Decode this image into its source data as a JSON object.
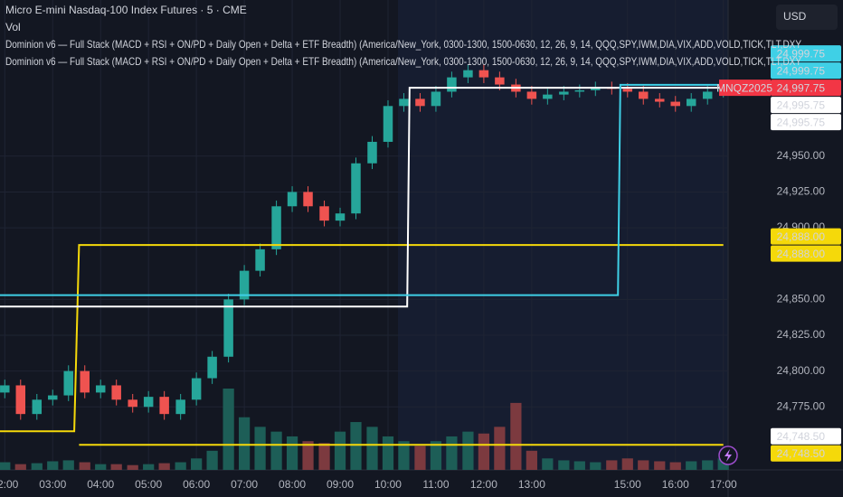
{
  "chart_data": {
    "type": "candlestick",
    "title": "Micro E-mini Nasdaq-100 Index Futures · 5 · CME",
    "indicators": [
      "Vol",
      "Dominion v6 — Full Stack (MACD + RSI + ON/PD + Daily Open + Delta + ETF Breadth) (America/New_York, 0300-1300, 1500-0630, 12, 26, 9, 14, QQQ,SPY,IWM,DIA,VIX,ADD,VOLD,TICK,TLT,DXY",
      "Dominion v6 — Full Stack (MACD + RSI + ON/PD + Daily Open + Delta + ETF Breadth) (America/New_York, 0300-1300, 1500-0630, 12, 26, 9, 14, QQQ,SPY,IWM,DIA,VIX,ADD,VOLD,TICK,TLT,DXY"
    ],
    "currency": "USD",
    "x": [
      2.0,
      2.33,
      2.67,
      3.0,
      3.33,
      3.67,
      4.0,
      4.33,
      4.67,
      5.0,
      5.33,
      5.67,
      6.0,
      6.33,
      6.67,
      7.0,
      7.33,
      7.67,
      8.0,
      8.33,
      8.67,
      9.0,
      9.33,
      9.67,
      10.0,
      10.33,
      10.67,
      11.0,
      11.33,
      11.67,
      12.0,
      12.33,
      12.67,
      13.0,
      13.33,
      13.67,
      14.0,
      14.33,
      14.67,
      15.0,
      15.33,
      15.67,
      16.0,
      16.33,
      16.67,
      17.0
    ],
    "open": [
      24785,
      24790,
      24770,
      24780,
      24783,
      24800,
      24785,
      24790,
      24780,
      24775,
      24782,
      24770,
      24780,
      24795,
      24810,
      24850,
      24870,
      24885,
      24915,
      24925,
      24915,
      24905,
      24910,
      24945,
      24960,
      24985,
      24990,
      24985,
      24995,
      25005,
      25010,
      25005,
      25000,
      24995,
      24990,
      24993,
      24995,
      24996,
      24998,
      24997,
      24995,
      24990,
      24988,
      24985,
      24990,
      24995
    ],
    "high": [
      24794,
      24794,
      24784,
      24787,
      24804,
      24804,
      24794,
      24794,
      24784,
      24786,
      24786,
      24784,
      24799,
      24814,
      24854,
      24874,
      24889,
      24919,
      24929,
      24929,
      24919,
      24914,
      24949,
      24964,
      24989,
      24994,
      24994,
      24999,
      25009,
      25014,
      25014,
      25009,
      25004,
      24999,
      24997,
      24999,
      25000,
      25002,
      25002,
      25001,
      24999,
      24994,
      24992,
      24994,
      24999,
      25002
    ],
    "low": [
      24781,
      24766,
      24766,
      24776,
      24779,
      24781,
      24781,
      24776,
      24771,
      24771,
      24766,
      24766,
      24776,
      24791,
      24806,
      24846,
      24866,
      24881,
      24911,
      24911,
      24901,
      24901,
      24906,
      24941,
      24956,
      24981,
      24981,
      24981,
      24991,
      25001,
      25001,
      24996,
      24991,
      24986,
      24986,
      24989,
      24991,
      24992,
      24993,
      24991,
      24986,
      24984,
      24981,
      24981,
      24986,
      24991
    ],
    "close": [
      24790,
      24770,
      24780,
      24783,
      24800,
      24785,
      24790,
      24780,
      24775,
      24782,
      24770,
      24780,
      24795,
      24810,
      24850,
      24870,
      24885,
      24915,
      24925,
      24915,
      24905,
      24910,
      24945,
      24960,
      24985,
      24990,
      24985,
      24995,
      25005,
      25010,
      25005,
      25000,
      24995,
      24990,
      24993,
      24995,
      24996,
      24998,
      24997,
      24995,
      24990,
      24988,
      24985,
      24990,
      24995,
      24998
    ],
    "volume": [
      8,
      6,
      7,
      9,
      10,
      8,
      6,
      6,
      5,
      6,
      7,
      8,
      12,
      20,
      85,
      55,
      45,
      40,
      35,
      30,
      28,
      40,
      50,
      45,
      35,
      30,
      25,
      30,
      35,
      40,
      38,
      45,
      70,
      20,
      12,
      10,
      9,
      8,
      10,
      12,
      10,
      9,
      8,
      9,
      10,
      12
    ],
    "up_color": "#26a69a",
    "down_color": "#ef5350",
    "up_volume_color": "#1d5e57",
    "down_volume_color": "#7c3a3f",
    "xlim": [
      1.9,
      17.1
    ],
    "ylim": [
      24731,
      25059
    ],
    "grid": true,
    "xticks": [
      {
        "value": 2,
        "label": "02:00"
      },
      {
        "value": 3,
        "label": "03:00"
      },
      {
        "value": 4,
        "label": "04:00"
      },
      {
        "value": 5,
        "label": "05:00"
      },
      {
        "value": 6,
        "label": "06:00"
      },
      {
        "value": 7,
        "label": "07:00"
      },
      {
        "value": 8,
        "label": "08:00"
      },
      {
        "value": 9,
        "label": "09:00"
      },
      {
        "value": 10,
        "label": "10:00"
      },
      {
        "value": 11,
        "label": "11:00"
      },
      {
        "value": 12,
        "label": "12:00"
      },
      {
        "value": 13,
        "label": "13:00"
      },
      {
        "value": 15,
        "label": "15:00"
      },
      {
        "value": 16,
        "label": "16:00"
      },
      {
        "value": 17,
        "label": "17:00"
      }
    ],
    "yticks": [
      {
        "value": 24775,
        "label": "24,775.00"
      },
      {
        "value": 24800,
        "label": "24,800.00"
      },
      {
        "value": 24825,
        "label": "24,825.00"
      },
      {
        "value": 24850,
        "label": "24,850.00"
      },
      {
        "value": 24900,
        "label": "24,900.00"
      },
      {
        "value": 24925,
        "label": "24,925.00"
      },
      {
        "value": 24950,
        "label": "24,950.00"
      }
    ],
    "lines": [
      {
        "color": "#f5d90a",
        "x": [
          1.9,
          3.45,
          3.55,
          17.0
        ],
        "values": [
          24758,
          24758,
          24888,
          24888
        ]
      },
      {
        "color": "#f5d90a",
        "x": [
          3.55,
          17.0
        ],
        "values": [
          24748.5,
          24748.5
        ]
      },
      {
        "color": "#ffffff",
        "x": [
          1.9,
          10.4,
          10.45,
          17.0
        ],
        "values": [
          24845,
          24845,
          24997.75,
          24997.75
        ]
      },
      {
        "color": "#3fd0e6",
        "x": [
          1.9,
          14.8,
          14.85,
          17.0
        ],
        "values": [
          24853,
          24853,
          24999.75,
          24999.75
        ]
      }
    ],
    "price_labels": [
      {
        "value": 24999.75,
        "label": "24,999.75",
        "color": "#3fd0e6",
        "text_color": "#000000"
      },
      {
        "value": 24999.75,
        "label": "24,999.75",
        "color": "#3fd0e6",
        "text_color": "#000000"
      },
      {
        "value": 24997.75,
        "label": "24,997.75",
        "symbol": "MNQZ2025",
        "color": "#f23645",
        "text_color": "#ffffff"
      },
      {
        "value": 24995.75,
        "label": "24,995.75",
        "color": "#ffffff",
        "text_color": "#000000"
      },
      {
        "value": 24995.75,
        "label": "24,995.75",
        "color": "#ffffff",
        "text_color": "#000000"
      },
      {
        "value": 24888,
        "label": "24,888.00",
        "color": "#f5d90a",
        "text_color": "#000000"
      },
      {
        "value": 24888,
        "label": "24,888.00",
        "color": "#f5d90a",
        "text_color": "#000000"
      },
      {
        "value": 24748.5,
        "label": "24,748.50",
        "color": "#ffffff",
        "text_color": "#000000"
      },
      {
        "value": 24748.5,
        "label": "24,748.50",
        "color": "#f5d90a",
        "text_color": "#000000"
      }
    ]
  }
}
